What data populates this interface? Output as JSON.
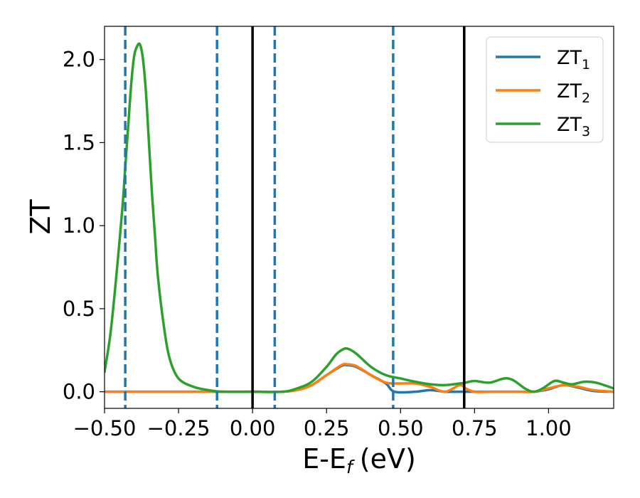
{
  "chart_data": {
    "type": "line",
    "xlabel": "E-E",
    "xlabel_sub": "f",
    "xlabel_unit": "(eV)",
    "ylabel": "ZT",
    "xlim": [
      -0.5,
      1.22
    ],
    "ylim": [
      -0.1,
      2.2
    ],
    "xticks": [
      -0.5,
      -0.25,
      0.0,
      0.25,
      0.5,
      0.75,
      1.0
    ],
    "xtick_labels": [
      "−0.50",
      "−0.25",
      "0.00",
      "0.25",
      "0.50",
      "0.75",
      "1.00"
    ],
    "yticks": [
      0.0,
      0.5,
      1.0,
      1.5,
      2.0
    ],
    "ytick_labels": [
      "0.0",
      "0.5",
      "1.0",
      "1.5",
      "2.0"
    ],
    "grid": false,
    "legend_position": "top-right",
    "vlines_solid": [
      0.0,
      0.715
    ],
    "vlines_dashed": [
      -0.43,
      -0.12,
      0.075,
      0.475
    ],
    "series": [
      {
        "name": "ZT",
        "name_sub": "1",
        "color": "#1f77b4",
        "points": [
          [
            -0.5,
            0.0
          ],
          [
            -0.3,
            0.0
          ],
          [
            0.0,
            0.0
          ],
          [
            0.1,
            0.0
          ],
          [
            0.15,
            0.01
          ],
          [
            0.2,
            0.04
          ],
          [
            0.25,
            0.1
          ],
          [
            0.3,
            0.155
          ],
          [
            0.32,
            0.16
          ],
          [
            0.35,
            0.15
          ],
          [
            0.4,
            0.1
          ],
          [
            0.45,
            0.05
          ],
          [
            0.48,
            0.0
          ],
          [
            0.55,
            0.0
          ],
          [
            0.6,
            0.01
          ],
          [
            0.65,
            0.0
          ],
          [
            0.7,
            0.0
          ],
          [
            0.8,
            0.0
          ],
          [
            0.9,
            0.0
          ],
          [
            0.95,
            0.0
          ],
          [
            1.0,
            0.015
          ],
          [
            1.05,
            0.04
          ],
          [
            1.1,
            0.025
          ],
          [
            1.15,
            0.005
          ],
          [
            1.22,
            0.0
          ]
        ]
      },
      {
        "name": "ZT",
        "name_sub": "2",
        "color": "#ff7f0e",
        "points": [
          [
            -0.5,
            0.0
          ],
          [
            -0.4,
            0.0
          ],
          [
            -0.3,
            0.0
          ],
          [
            0.0,
            0.0
          ],
          [
            0.1,
            0.0
          ],
          [
            0.15,
            0.01
          ],
          [
            0.2,
            0.04
          ],
          [
            0.25,
            0.1
          ],
          [
            0.3,
            0.16
          ],
          [
            0.32,
            0.165
          ],
          [
            0.35,
            0.155
          ],
          [
            0.4,
            0.1
          ],
          [
            0.45,
            0.055
          ],
          [
            0.5,
            0.05
          ],
          [
            0.55,
            0.05
          ],
          [
            0.6,
            0.03
          ],
          [
            0.65,
            0.0
          ],
          [
            0.7,
            0.04
          ],
          [
            0.72,
            0.02
          ],
          [
            0.75,
            0.0
          ],
          [
            0.8,
            0.0
          ],
          [
            0.85,
            0.0
          ],
          [
            0.9,
            0.0
          ],
          [
            0.95,
            0.0
          ],
          [
            1.0,
            0.02
          ],
          [
            1.05,
            0.04
          ],
          [
            1.1,
            0.03
          ],
          [
            1.15,
            0.01
          ],
          [
            1.22,
            0.0
          ]
        ]
      },
      {
        "name": "ZT",
        "name_sub": "3",
        "color": "#2ca02c",
        "points": [
          [
            -0.5,
            0.12
          ],
          [
            -0.48,
            0.35
          ],
          [
            -0.46,
            0.7
          ],
          [
            -0.44,
            1.1
          ],
          [
            -0.43,
            1.35
          ],
          [
            -0.42,
            1.6
          ],
          [
            -0.41,
            1.85
          ],
          [
            -0.4,
            2.02
          ],
          [
            -0.39,
            2.08
          ],
          [
            -0.38,
            2.09
          ],
          [
            -0.37,
            2.0
          ],
          [
            -0.36,
            1.8
          ],
          [
            -0.35,
            1.5
          ],
          [
            -0.34,
            1.2
          ],
          [
            -0.33,
            0.95
          ],
          [
            -0.32,
            0.7
          ],
          [
            -0.3,
            0.4
          ],
          [
            -0.28,
            0.2
          ],
          [
            -0.25,
            0.08
          ],
          [
            -0.2,
            0.03
          ],
          [
            -0.15,
            0.01
          ],
          [
            -0.1,
            0.0
          ],
          [
            0.0,
            0.0
          ],
          [
            0.1,
            0.0
          ],
          [
            0.15,
            0.02
          ],
          [
            0.2,
            0.06
          ],
          [
            0.25,
            0.15
          ],
          [
            0.28,
            0.22
          ],
          [
            0.3,
            0.25
          ],
          [
            0.32,
            0.26
          ],
          [
            0.35,
            0.23
          ],
          [
            0.4,
            0.15
          ],
          [
            0.45,
            0.1
          ],
          [
            0.5,
            0.08
          ],
          [
            0.55,
            0.06
          ],
          [
            0.6,
            0.045
          ],
          [
            0.65,
            0.04
          ],
          [
            0.7,
            0.05
          ],
          [
            0.72,
            0.055
          ],
          [
            0.75,
            0.065
          ],
          [
            0.8,
            0.055
          ],
          [
            0.85,
            0.08
          ],
          [
            0.88,
            0.07
          ],
          [
            0.92,
            0.02
          ],
          [
            0.95,
            0.0
          ],
          [
            0.98,
            0.02
          ],
          [
            1.02,
            0.065
          ],
          [
            1.05,
            0.055
          ],
          [
            1.08,
            0.045
          ],
          [
            1.12,
            0.06
          ],
          [
            1.16,
            0.055
          ],
          [
            1.22,
            0.02
          ]
        ]
      }
    ]
  }
}
